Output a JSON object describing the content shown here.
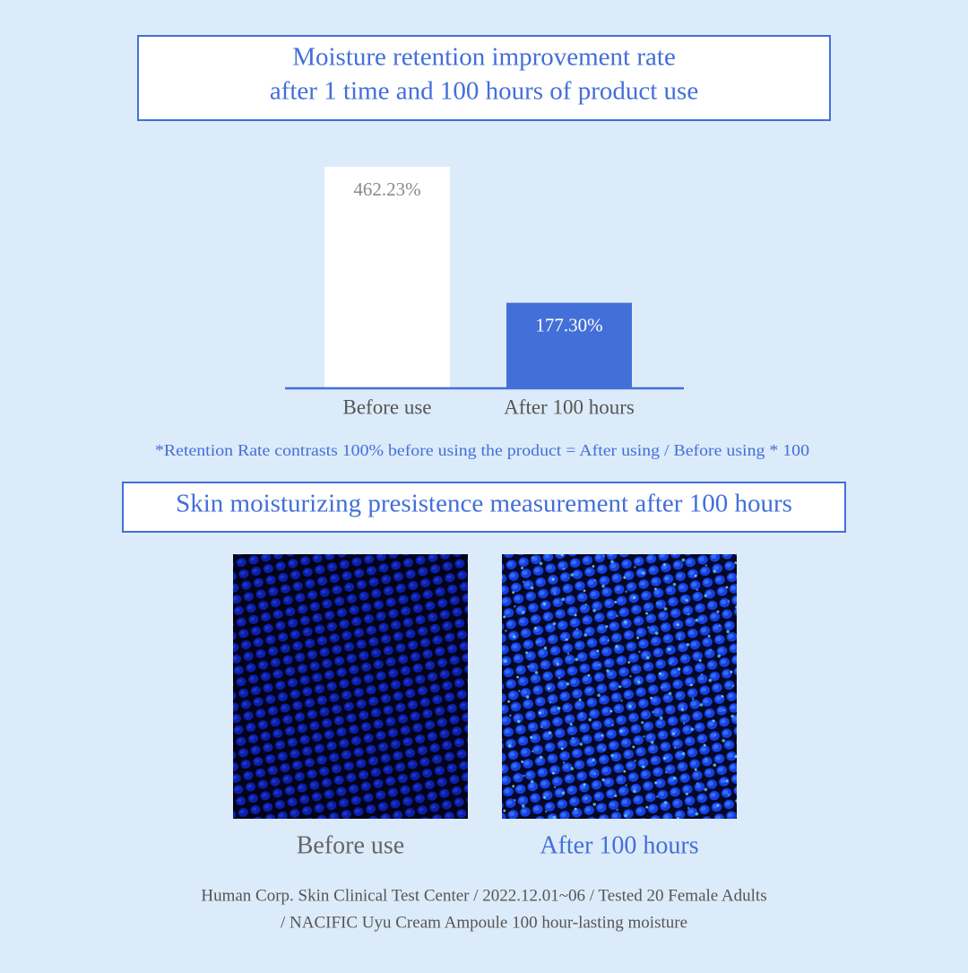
{
  "header": {
    "title_lines": [
      "Moisture retention improvement rate",
      "after 1 time and 100 hours of product use"
    ]
  },
  "chart_data": {
    "type": "bar",
    "categories": [
      "Before use",
      "After 100 hours"
    ],
    "values": [
      462.23,
      177.3
    ],
    "value_labels": [
      "462.23%",
      "177.30%"
    ],
    "colors": [
      "#ffffff",
      "#436fd9"
    ]
  },
  "footnote": "*Retention Rate contrasts 100% before using the product = After using / Before using * 100",
  "section": {
    "title": "Skin moisturizing presistence measurement after 100 hours"
  },
  "images": [
    {
      "label": "Before use"
    },
    {
      "label": "After 100 hours"
    }
  ],
  "footer": {
    "lines": [
      "Human Corp. Skin Clinical Test Center / 2022.12.01~06 / Tested 20 Female Adults",
      "/ NACIFIC Uyu Cream Ampoule 100 hour-lasting moisture"
    ]
  }
}
